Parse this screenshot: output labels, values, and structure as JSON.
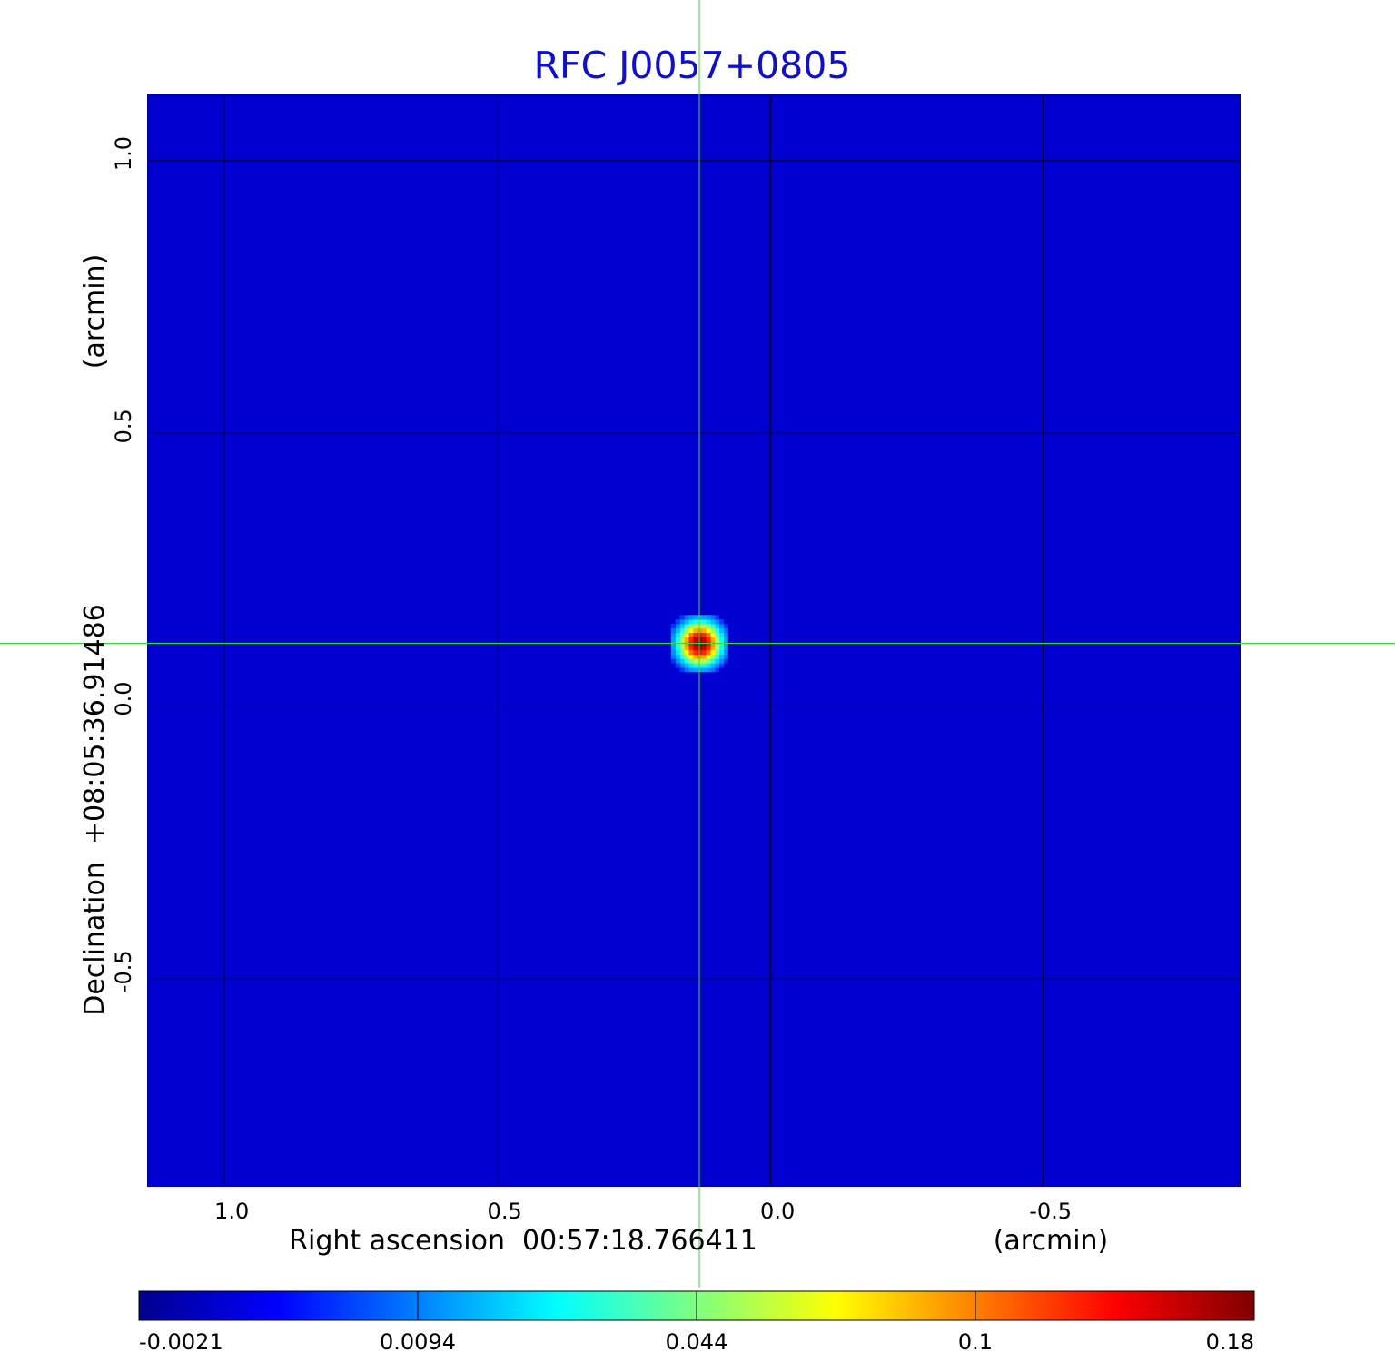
{
  "chart_data": {
    "type": "heatmap",
    "title": "RFC J0057+0805",
    "xlabel": "Right ascension  00:57:18.766411",
    "xunit": "(arcmin)",
    "ylabel": "Declination  +08:05:36.91486",
    "yunit": "(arcmin)",
    "x_axis": {
      "reversed": true,
      "range": [
        1.14,
        -0.86
      ],
      "ticks": [
        1.0,
        0.5,
        0.0,
        -0.5
      ],
      "tick_labels": [
        "1.0",
        "0.5",
        "0.0",
        "-0.5"
      ]
    },
    "y_axis": {
      "range": [
        -0.88,
        1.12
      ],
      "ticks": [
        1.0,
        0.5,
        0.0,
        -0.5
      ],
      "tick_labels": [
        "1.0",
        "0.5",
        "0.0",
        "-0.5"
      ]
    },
    "grid": true,
    "crosshair": {
      "x": 0.13,
      "y": 0.115,
      "color": "#33dd33"
    },
    "source": {
      "x": 0.13,
      "y": 0.115,
      "peak": 0.18,
      "fwhm": 0.05
    },
    "background_level": 0.0015,
    "colormap": "jet",
    "colorbar": {
      "min": -0.0021,
      "max": 0.18,
      "ticks": [
        -0.0021,
        0.0094,
        0.044,
        0.1,
        0.18
      ],
      "tick_labels": [
        "-0.0021",
        "0.0094",
        "0.044",
        "0.1",
        "0.18"
      ]
    },
    "colors": {
      "title": "#1010cc",
      "grid": "#000000",
      "frame": "#0000aa"
    }
  }
}
